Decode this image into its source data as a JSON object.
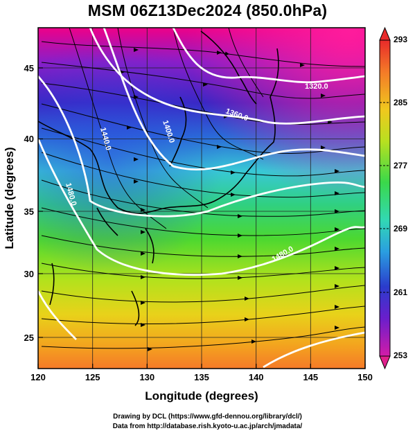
{
  "title": "MSM 06Z13Dec2024 (850.0hPa)",
  "axes": {
    "xlabel": "Longitude (degrees)",
    "ylabel": "Latitude  (degrees)",
    "x_ticks": [
      "120",
      "125",
      "130",
      "135",
      "140",
      "145",
      "150"
    ],
    "y_ticks": [
      "25",
      "30",
      "35",
      "40",
      "45"
    ],
    "x_range": [
      120,
      150
    ],
    "y_range": [
      22.4,
      47.6
    ]
  },
  "colorbar": {
    "labels": [
      "293",
      "285",
      "277",
      "269",
      "261",
      "253"
    ],
    "range": [
      253,
      293
    ]
  },
  "contours": [
    {
      "label": "1320.0"
    },
    {
      "label": "1360.0"
    },
    {
      "label": "1400.0"
    },
    {
      "label": "1440.0"
    },
    {
      "label": "1480.0"
    },
    {
      "label": "1480.0"
    }
  ],
  "credits": {
    "line1": "Drawing by DCL (https://www.gfd-dennou.org/library/dcl/)",
    "line2": "Data from http://database.rish.kyoto-u.ac.jp/arch/jmadata/"
  }
}
